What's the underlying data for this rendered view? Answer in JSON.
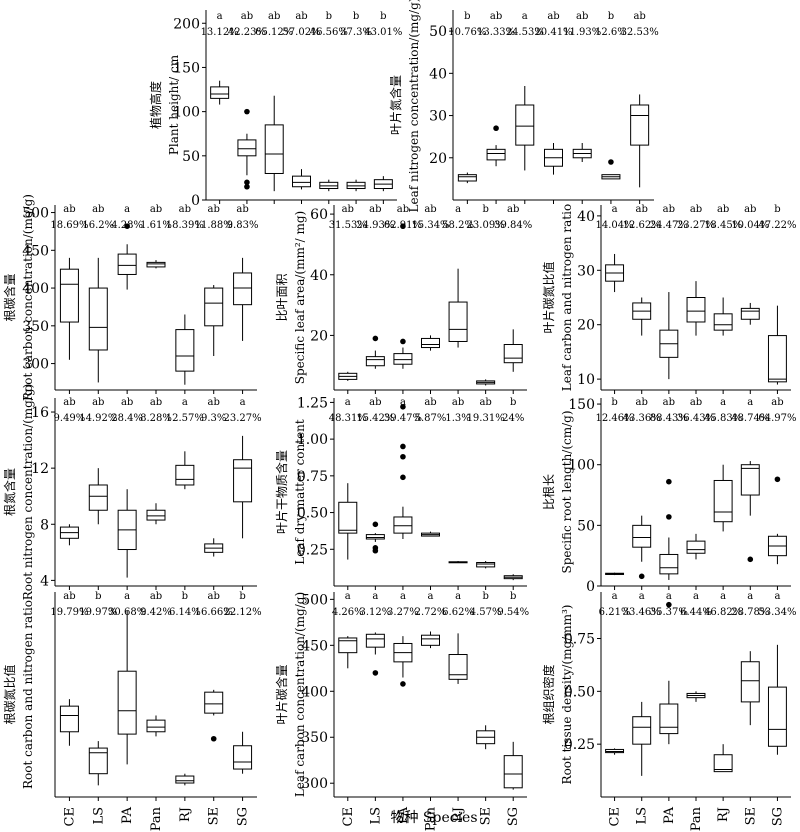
{
  "figure": {
    "xlabel": "物种 Species",
    "species": [
      "CE",
      "LS",
      "PA",
      "Pan",
      "RJ",
      "SE",
      "SG"
    ]
  },
  "chart_data": [
    {
      "id": "plant-height",
      "type": "box",
      "ylabel_cn": "植物高度",
      "ylabel_en": "Plant height/ cm",
      "ylim": [
        0,
        215
      ],
      "yticks": [
        0,
        50,
        100,
        150,
        200
      ],
      "groups": [
        "a",
        "ab",
        "ab",
        "ab",
        "b",
        "b",
        "b"
      ],
      "cv": [
        "13.12%",
        "42.23%",
        "65.12%",
        "57.02%",
        "46.56%",
        "37.3%",
        "43.01%"
      ],
      "boxes": [
        {
          "whislo": 108,
          "q1": 115,
          "med": 120,
          "q3": 128,
          "whishi": 135,
          "fliers": []
        },
        {
          "whislo": 28,
          "q1": 50,
          "med": 58,
          "q3": 68,
          "whishi": 75,
          "fliers": [
            100,
            20,
            15
          ]
        },
        {
          "whislo": 10,
          "q1": 30,
          "med": 52,
          "q3": 85,
          "whishi": 118,
          "fliers": []
        },
        {
          "whislo": 12,
          "q1": 15,
          "med": 20,
          "q3": 27,
          "whishi": 35,
          "fliers": []
        },
        {
          "whislo": 10,
          "q1": 13,
          "med": 16,
          "q3": 20,
          "whishi": 23,
          "fliers": []
        },
        {
          "whislo": 10,
          "q1": 13,
          "med": 16,
          "q3": 20,
          "whishi": 23,
          "fliers": []
        },
        {
          "whislo": 10,
          "q1": 13,
          "med": 18,
          "q3": 23,
          "whishi": 27,
          "fliers": []
        }
      ]
    },
    {
      "id": "leaf-n",
      "type": "box",
      "ylabel_cn": "叶片氮含量",
      "ylabel_en": "Leaf nitrogen concentration/(mg/g)",
      "ylim": [
        10,
        55
      ],
      "yticks": [
        20,
        30,
        40,
        50
      ],
      "groups": [
        "b",
        "ab",
        "a",
        "ab",
        "ab",
        "b",
        "ab"
      ],
      "cv": [
        "10.76%",
        "13.33%",
        "24.53%",
        "20.41%",
        "11.93%",
        "12.6%",
        "32.53%"
      ],
      "boxes": [
        {
          "whislo": 14,
          "q1": 14.5,
          "med": 15.5,
          "q3": 16,
          "whishi": 16.5,
          "fliers": []
        },
        {
          "whislo": 18,
          "q1": 19.5,
          "med": 21,
          "q3": 22,
          "whishi": 23,
          "fliers": [
            27
          ]
        },
        {
          "whislo": 17,
          "q1": 23,
          "med": 27.5,
          "q3": 32.5,
          "whishi": 37,
          "fliers": []
        },
        {
          "whislo": 16,
          "q1": 18,
          "med": 20,
          "q3": 22,
          "whishi": 23.5,
          "fliers": []
        },
        {
          "whislo": 19,
          "q1": 20,
          "med": 21,
          "q3": 22,
          "whishi": 23.5,
          "fliers": []
        },
        {
          "whislo": 15,
          "q1": 15,
          "med": 15.5,
          "q3": 16,
          "whishi": 16,
          "fliers": [
            19
          ]
        },
        {
          "whislo": 13,
          "q1": 23,
          "med": 30,
          "q3": 32.5,
          "whishi": 35,
          "fliers": []
        }
      ]
    },
    {
      "id": "root-c",
      "type": "box",
      "ylabel_cn": "根碳含量",
      "ylabel_en": "Root carbon concentration/(mg/g)",
      "ylim": [
        265,
        510
      ],
      "yticks": [
        300,
        350,
        400,
        450,
        500
      ],
      "groups": [
        "ab",
        "ab",
        "a",
        "ab",
        "ab",
        "ab",
        "ab"
      ],
      "cv": [
        "18.69%",
        "16.2%",
        "4.28%",
        "1.61%",
        "18.39%",
        "11.88%",
        "9.83%"
      ],
      "boxes": [
        {
          "whislo": 305,
          "q1": 355,
          "med": 405,
          "q3": 425,
          "whishi": 440,
          "fliers": []
        },
        {
          "whislo": 275,
          "q1": 318,
          "med": 348,
          "q3": 400,
          "whishi": 440,
          "fliers": []
        },
        {
          "whislo": 398,
          "q1": 418,
          "med": 430,
          "q3": 445,
          "whishi": 458,
          "fliers": [
            482
          ]
        },
        {
          "whislo": 426,
          "q1": 428,
          "med": 432,
          "q3": 434,
          "whishi": 437,
          "fliers": []
        },
        {
          "whislo": 272,
          "q1": 290,
          "med": 310,
          "q3": 345,
          "whishi": 365,
          "fliers": []
        },
        {
          "whislo": 310,
          "q1": 350,
          "med": 380,
          "q3": 400,
          "whishi": 404,
          "fliers": []
        },
        {
          "whislo": 330,
          "q1": 378,
          "med": 400,
          "q3": 420,
          "whishi": 440,
          "fliers": []
        }
      ]
    },
    {
      "id": "sla",
      "type": "box",
      "ylabel_cn": "比叶面积",
      "ylabel_en": "Specific leaf area/(mm²/ mg)",
      "ylim": [
        2,
        63
      ],
      "yticks": [
        20,
        40,
        60
      ],
      "groups": [
        "ab",
        "ab",
        "ab",
        "ab",
        "a",
        "b",
        "ab"
      ],
      "cv": [
        "31.53%",
        "24.93%",
        "62.91%",
        "15.34%",
        "58.2%",
        "23.09%",
        "39.84%"
      ],
      "boxes": [
        {
          "whislo": 5,
          "q1": 5.5,
          "med": 6.5,
          "q3": 7.5,
          "whishi": 8,
          "fliers": []
        },
        {
          "whislo": 9,
          "q1": 10,
          "med": 12,
          "q3": 13,
          "whishi": 15,
          "fliers": [
            19
          ]
        },
        {
          "whislo": 9,
          "q1": 10.5,
          "med": 12,
          "q3": 14,
          "whishi": 16,
          "fliers": [
            18,
            56
          ]
        },
        {
          "whislo": 15,
          "q1": 16,
          "med": 17,
          "q3": 19,
          "whishi": 20,
          "fliers": []
        },
        {
          "whislo": 16,
          "q1": 18,
          "med": 22,
          "q3": 31,
          "whishi": 42,
          "fliers": []
        },
        {
          "whislo": 3.5,
          "q1": 4,
          "med": 4.5,
          "q3": 5,
          "whishi": 5.5,
          "fliers": []
        },
        {
          "whislo": 8,
          "q1": 11,
          "med": 12.5,
          "q3": 17,
          "whishi": 22,
          "fliers": []
        }
      ]
    },
    {
      "id": "leaf-cn",
      "type": "box",
      "ylabel_cn": "叶片碳氮比值",
      "ylabel_en": "Leaf carbon and nitrogen ratio",
      "ylim": [
        8,
        42
      ],
      "yticks": [
        10,
        20,
        30,
        40
      ],
      "groups": [
        "a",
        "ab",
        "ab",
        "ab",
        "ab",
        "ab",
        "b"
      ],
      "cv": [
        "14.04%",
        "12.62%",
        "24.47%",
        "23.27%",
        "18.45%",
        "10.04%",
        "47.22%"
      ],
      "boxes": [
        {
          "whislo": 26,
          "q1": 28,
          "med": 29.5,
          "q3": 31,
          "whishi": 33,
          "fliers": []
        },
        {
          "whislo": 18,
          "q1": 21,
          "med": 22.5,
          "q3": 24,
          "whishi": 25,
          "fliers": []
        },
        {
          "whislo": 10,
          "q1": 14,
          "med": 16.5,
          "q3": 19,
          "whishi": 26,
          "fliers": []
        },
        {
          "whislo": 18,
          "q1": 20.5,
          "med": 22.5,
          "q3": 25,
          "whishi": 28,
          "fliers": []
        },
        {
          "whislo": 18,
          "q1": 19,
          "med": 20,
          "q3": 22,
          "whishi": 25,
          "fliers": []
        },
        {
          "whislo": 20,
          "q1": 21,
          "med": 22.5,
          "q3": 23,
          "whishi": 24,
          "fliers": []
        },
        {
          "whislo": 9,
          "q1": 9.5,
          "med": 10,
          "q3": 18,
          "whishi": 23.5,
          "fliers": []
        }
      ]
    },
    {
      "id": "root-n",
      "type": "box",
      "ylabel_cn": "根氮含量",
      "ylabel_en": "Root nitrogen concentration/(mg/g)",
      "ylim": [
        3.6,
        17
      ],
      "yticks": [
        4,
        8,
        12,
        16
      ],
      "groups": [
        "ab",
        "ab",
        "ab",
        "ab",
        "a",
        "ab",
        "a"
      ],
      "cv": [
        "9.49%",
        "14.92%",
        "28.4%",
        "8.28%",
        "12.57%",
        "9.3%",
        "23.27%"
      ],
      "boxes": [
        {
          "whislo": 6.5,
          "q1": 7,
          "med": 7.4,
          "q3": 7.8,
          "whishi": 8,
          "fliers": []
        },
        {
          "whislo": 8,
          "q1": 9,
          "med": 10,
          "q3": 10.8,
          "whishi": 12,
          "fliers": []
        },
        {
          "whislo": 4.2,
          "q1": 6.2,
          "med": 7.6,
          "q3": 9,
          "whishi": 10.5,
          "fliers": []
        },
        {
          "whislo": 8,
          "q1": 8.3,
          "med": 8.6,
          "q3": 9,
          "whishi": 9.5,
          "fliers": []
        },
        {
          "whislo": 10.5,
          "q1": 10.8,
          "med": 11.2,
          "q3": 12.2,
          "whishi": 13.2,
          "fliers": []
        },
        {
          "whislo": 5.7,
          "q1": 6,
          "med": 6.3,
          "q3": 6.6,
          "whishi": 7,
          "fliers": []
        },
        {
          "whislo": 7,
          "q1": 9.6,
          "med": 12,
          "q3": 12.6,
          "whishi": 14.3,
          "fliers": []
        }
      ]
    },
    {
      "id": "ldmc",
      "type": "box",
      "ylabel_cn": "叶片干物质含量",
      "ylabel_en": "Leaf dry matter content",
      "ylim": [
        0,
        1.28
      ],
      "yticks": [
        0.25,
        0.5,
        0.75,
        1.0,
        1.25
      ],
      "ytick_labels": [
        "0.25",
        "0.50",
        "0.75",
        "1.00",
        "1.25"
      ],
      "groups": [
        "a",
        "ab",
        "a",
        "ab",
        "ab",
        "ab",
        "b"
      ],
      "cv": [
        "48.31%",
        "15.42%",
        "39.47%",
        "5.87%",
        "1.3%",
        "19.31%",
        "24%"
      ],
      "boxes": [
        {
          "whislo": 0.18,
          "q1": 0.36,
          "med": 0.38,
          "q3": 0.57,
          "whishi": 0.7,
          "fliers": []
        },
        {
          "whislo": 0.3,
          "q1": 0.32,
          "med": 0.33,
          "q3": 0.35,
          "whishi": 0.36,
          "fliers": [
            0.42,
            0.26,
            0.24
          ]
        },
        {
          "whislo": 0.32,
          "q1": 0.36,
          "med": 0.41,
          "q3": 0.47,
          "whishi": 0.54,
          "fliers": [
            0.74,
            0.88,
            0.95,
            1.22
          ]
        },
        {
          "whislo": 0.34,
          "q1": 0.34,
          "med": 0.35,
          "q3": 0.36,
          "whishi": 0.37,
          "fliers": []
        },
        {
          "whislo": 0.16,
          "q1": 0.16,
          "med": 0.16,
          "q3": 0.165,
          "whishi": 0.17,
          "fliers": []
        },
        {
          "whislo": 0.12,
          "q1": 0.13,
          "med": 0.15,
          "q3": 0.16,
          "whishi": 0.17,
          "fliers": []
        },
        {
          "whislo": 0.04,
          "q1": 0.05,
          "med": 0.06,
          "q3": 0.07,
          "whishi": 0.08,
          "fliers": []
        }
      ]
    },
    {
      "id": "srl",
      "type": "box",
      "ylabel_cn": "比根长",
      "ylabel_en": "Specific root length/(cm/g)",
      "ylim": [
        0,
        155
      ],
      "yticks": [
        0,
        50,
        100,
        150
      ],
      "groups": [
        "b",
        "ab",
        "ab",
        "ab",
        "a",
        "a",
        "ab"
      ],
      "cv": [
        "12.46%",
        "43.36%",
        "88.43%",
        "36.43%",
        "45.83%",
        "48.74%",
        "64.97%"
      ],
      "boxes": [
        {
          "whislo": 9,
          "q1": 9.5,
          "med": 10,
          "q3": 10.5,
          "whishi": 11,
          "fliers": []
        },
        {
          "whislo": 20,
          "q1": 32,
          "med": 40,
          "q3": 50,
          "whishi": 58,
          "fliers": [
            8
          ]
        },
        {
          "whislo": 5,
          "q1": 10,
          "med": 15,
          "q3": 26,
          "whishi": 40,
          "fliers": [
            57,
            86
          ]
        },
        {
          "whislo": 22,
          "q1": 27,
          "med": 30,
          "q3": 37,
          "whishi": 43,
          "fliers": []
        },
        {
          "whislo": 45,
          "q1": 53,
          "med": 61,
          "q3": 87,
          "whishi": 100,
          "fliers": []
        },
        {
          "whislo": 58,
          "q1": 75,
          "med": 97,
          "q3": 100,
          "whishi": 103,
          "fliers": [
            22
          ]
        },
        {
          "whislo": 18,
          "q1": 25,
          "med": 33,
          "q3": 41,
          "whishi": 43,
          "fliers": [
            88
          ]
        }
      ]
    },
    {
      "id": "root-cn",
      "type": "box",
      "ylabel_cn": "根碳氮比值",
      "ylabel_en": "Root carbon and nitrogen ratio",
      "ylim": [
        20,
        108
      ],
      "yticks": [],
      "groups": [
        "ab",
        "b",
        "a",
        "ab",
        "b",
        "ab",
        "b"
      ],
      "cv": [
        "19.79%",
        "19.97%",
        "30.68%",
        "9.42%",
        "6.14%",
        "16.66%",
        "22.12%"
      ],
      "boxes": [
        {
          "whislo": 42,
          "q1": 48,
          "med": 55,
          "q3": 59,
          "whishi": 62,
          "fliers": []
        },
        {
          "whislo": 25,
          "q1": 30,
          "med": 39,
          "q3": 41,
          "whishi": 44,
          "fliers": []
        },
        {
          "whislo": 34,
          "q1": 47,
          "med": 57,
          "q3": 74,
          "whishi": 100,
          "fliers": []
        },
        {
          "whislo": 46,
          "q1": 48,
          "med": 50,
          "q3": 53,
          "whishi": 55,
          "fliers": []
        },
        {
          "whislo": 25,
          "q1": 26,
          "med": 27,
          "q3": 29,
          "whishi": 30,
          "fliers": []
        },
        {
          "whislo": 55,
          "q1": 56,
          "med": 60,
          "q3": 65,
          "whishi": 66,
          "fliers": [
            45
          ]
        },
        {
          "whislo": 30,
          "q1": 32,
          "med": 35,
          "q3": 42,
          "whishi": 48,
          "fliers": []
        }
      ]
    },
    {
      "id": "leaf-c",
      "type": "box",
      "ylabel_cn": "叶片碳含量",
      "ylabel_en": "Leaf carbon concentration/(mg/g)",
      "ylim": [
        285,
        508
      ],
      "yticks": [
        300,
        350,
        400,
        450,
        500
      ],
      "groups": [
        "a",
        "a",
        "a",
        "a",
        "a",
        "b",
        "b"
      ],
      "cv": [
        "4.26%",
        "3.12%",
        "3.27%",
        "2.72%",
        "6.62%",
        "4.57%",
        "9.54%"
      ],
      "boxes": [
        {
          "whislo": 425,
          "q1": 442,
          "med": 455,
          "q3": 458,
          "whishi": 460,
          "fliers": []
        },
        {
          "whislo": 440,
          "q1": 448,
          "med": 457,
          "q3": 462,
          "whishi": 464,
          "fliers": [
            420
          ]
        },
        {
          "whislo": 415,
          "q1": 432,
          "med": 442,
          "q3": 452,
          "whishi": 460,
          "fliers": [
            408
          ]
        },
        {
          "whislo": 447,
          "q1": 450,
          "med": 457,
          "q3": 461,
          "whishi": 465,
          "fliers": []
        },
        {
          "whislo": 408,
          "q1": 413,
          "med": 418,
          "q3": 440,
          "whishi": 463,
          "fliers": []
        },
        {
          "whislo": 337,
          "q1": 343,
          "med": 350,
          "q3": 357,
          "whishi": 363,
          "fliers": []
        },
        {
          "whislo": 293,
          "q1": 295,
          "med": 310,
          "q3": 330,
          "whishi": 345,
          "fliers": []
        }
      ]
    },
    {
      "id": "rtd",
      "type": "box",
      "ylabel_cn": "根组织密度",
      "ylabel_en": "Root tissue density/(mg/mm³)",
      "ylim": [
        0,
        0.97
      ],
      "yticks": [
        0.25,
        0.5,
        0.75
      ],
      "ytick_labels": [
        "0.25",
        "0.50",
        "0.75"
      ],
      "groups": [
        "a",
        "a",
        "a",
        "a",
        "a",
        "a",
        "a"
      ],
      "cv": [
        "6.21%",
        "33.46%",
        "35.37%",
        "6.44%",
        "46.82%",
        "28.78%",
        "53.34%"
      ],
      "boxes": [
        {
          "whislo": 0.2,
          "q1": 0.21,
          "med": 0.215,
          "q3": 0.225,
          "whishi": 0.23,
          "fliers": []
        },
        {
          "whislo": 0.1,
          "q1": 0.25,
          "med": 0.33,
          "q3": 0.38,
          "whishi": 0.45,
          "fliers": []
        },
        {
          "whislo": 0.25,
          "q1": 0.3,
          "med": 0.33,
          "q3": 0.44,
          "whishi": 0.55,
          "fliers": [
            0.91
          ]
        },
        {
          "whislo": 0.45,
          "q1": 0.47,
          "med": 0.48,
          "q3": 0.49,
          "whishi": 0.5,
          "fliers": []
        },
        {
          "whislo": 0.12,
          "q1": 0.12,
          "med": 0.13,
          "q3": 0.2,
          "whishi": 0.25,
          "fliers": []
        },
        {
          "whislo": 0.34,
          "q1": 0.45,
          "med": 0.55,
          "q3": 0.64,
          "whishi": 0.69,
          "fliers": []
        },
        {
          "whislo": 0.2,
          "q1": 0.24,
          "med": 0.32,
          "q3": 0.52,
          "whishi": 0.72,
          "fliers": []
        }
      ]
    }
  ]
}
